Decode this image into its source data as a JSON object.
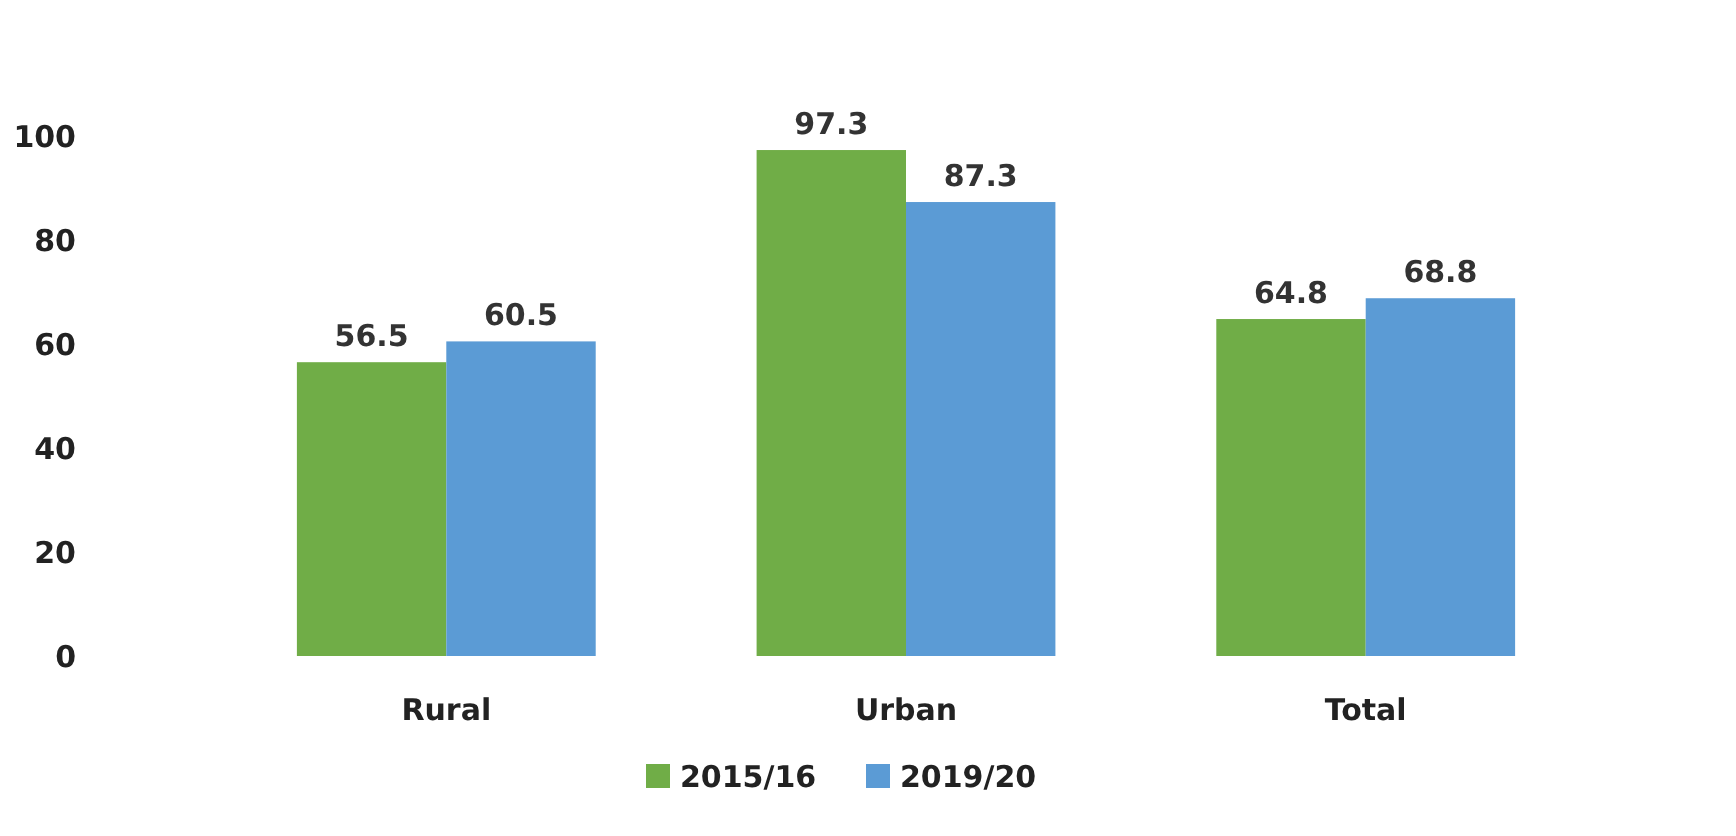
{
  "chart_data": {
    "type": "bar",
    "categories": [
      "Rural",
      "Urban",
      "Total"
    ],
    "series": [
      {
        "name": "2015/16",
        "color": "#70ad47",
        "values": [
          56.5,
          97.3,
          64.8
        ]
      },
      {
        "name": "2019/20",
        "color": "#5b9bd5",
        "values": [
          60.5,
          87.3,
          68.8
        ]
      }
    ],
    "ylim": [
      0,
      100
    ],
    "yticks": [
      0,
      20,
      40,
      60,
      80,
      100
    ],
    "data_labels": true,
    "legend": "bottom",
    "grid": false
  }
}
